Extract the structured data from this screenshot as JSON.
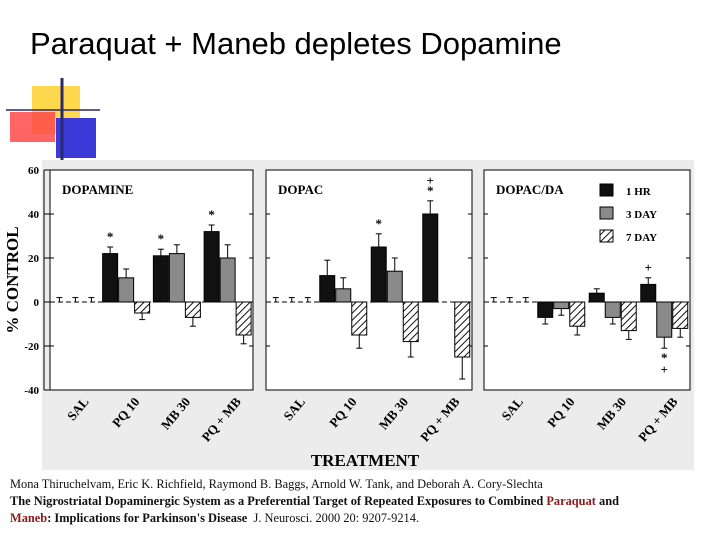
{
  "slide": {
    "title": "Paraquat + Maneb depletes Dopamine"
  },
  "colors": {
    "deco_yellow": "#ffd84d",
    "deco_red": "#ff4a4a",
    "deco_blue": "#3a3ad8",
    "bar_1hr": "#111111",
    "bar_3day": "#8a8a8a",
    "bar_7day": "hatched",
    "figure_background": "#ececec"
  },
  "chart_data": {
    "type": "bar",
    "ylabel": "% CONTROL",
    "xlabel": "TREATMENT",
    "ylim": [
      -40,
      60
    ],
    "yticks": [
      "60",
      "40",
      "20",
      "0",
      "-20",
      "-40"
    ],
    "categories": [
      "SAL",
      "PQ 10",
      "MB 30",
      "PQ + MB"
    ],
    "legend": {
      "placement": "top-right",
      "entries": [
        "1 HR",
        "3 DAY",
        "7 DAY"
      ]
    },
    "panels": [
      {
        "title": "DOPAMINE",
        "series": [
          {
            "name": "1 HR",
            "values": [
              0,
              22,
              21,
              32
            ],
            "errors": [
              2,
              3,
              3,
              3
            ]
          },
          {
            "name": "3 DAY",
            "values": [
              0,
              11,
              22,
              20
            ],
            "errors": [
              2,
              4,
              4,
              6
            ]
          },
          {
            "name": "7 DAY",
            "values": [
              0,
              -5,
              -7,
              -15
            ],
            "errors": [
              2,
              3,
              4,
              4
            ]
          }
        ],
        "annotations": [
          {
            "category": "PQ 10",
            "series": "1 HR",
            "text": "*"
          },
          {
            "category": "MB 30",
            "series": "1 HR",
            "text": "*"
          },
          {
            "category": "PQ + MB",
            "series": "1 HR",
            "text": "*"
          }
        ]
      },
      {
        "title": "DOPAC",
        "series": [
          {
            "name": "1 HR",
            "values": [
              0,
              12,
              25,
              40
            ],
            "errors": [
              2,
              7,
              6,
              6
            ]
          },
          {
            "name": "3 DAY",
            "values": [
              0,
              6,
              14,
              0
            ],
            "errors": [
              2,
              5,
              6,
              0
            ]
          },
          {
            "name": "7 DAY",
            "values": [
              0,
              -15,
              -18,
              -25
            ],
            "errors": [
              2,
              6,
              7,
              10
            ]
          }
        ],
        "annotations": [
          {
            "category": "MB 30",
            "series": "1 HR",
            "text": "*"
          },
          {
            "category": "PQ + MB",
            "series": "1 HR",
            "text": "*"
          },
          {
            "category": "PQ + MB",
            "series": "1 HR",
            "text": "+"
          }
        ]
      },
      {
        "title": "DOPAC/DA",
        "series": [
          {
            "name": "1 HR",
            "values": [
              0,
              -7,
              4,
              8
            ],
            "errors": [
              2,
              3,
              2,
              3
            ]
          },
          {
            "name": "3 DAY",
            "values": [
              0,
              -3,
              -7,
              -16
            ],
            "errors": [
              2,
              3,
              3,
              5
            ]
          },
          {
            "name": "7 DAY",
            "values": [
              0,
              -11,
              -13,
              -12
            ],
            "errors": [
              2,
              4,
              4,
              4
            ]
          }
        ],
        "annotations": [
          {
            "category": "PQ + MB",
            "series": "1 HR",
            "text": "+"
          },
          {
            "category": "PQ + MB",
            "series": "3 DAY",
            "text": "*"
          },
          {
            "category": "PQ + MB",
            "series": "3 DAY",
            "text": "+"
          }
        ]
      }
    ]
  },
  "citation": {
    "authors": "Mona Thiruchelvam, Eric K. Richfield, Raymond B. Baggs, Arnold W. Tank, and Deborah A. Cory-Slechta",
    "title_part1": "The Nigrostriatal Dopaminergic System as a Preferential Target of Repeated Exposures to Combined",
    "paraquat": "Paraquat",
    "and": "and",
    "maneb": "Maneb",
    "title_part2": ": Implications for Parkinson's Disease",
    "journal": "J. Neurosci. 2000 20: 9207-9214."
  }
}
